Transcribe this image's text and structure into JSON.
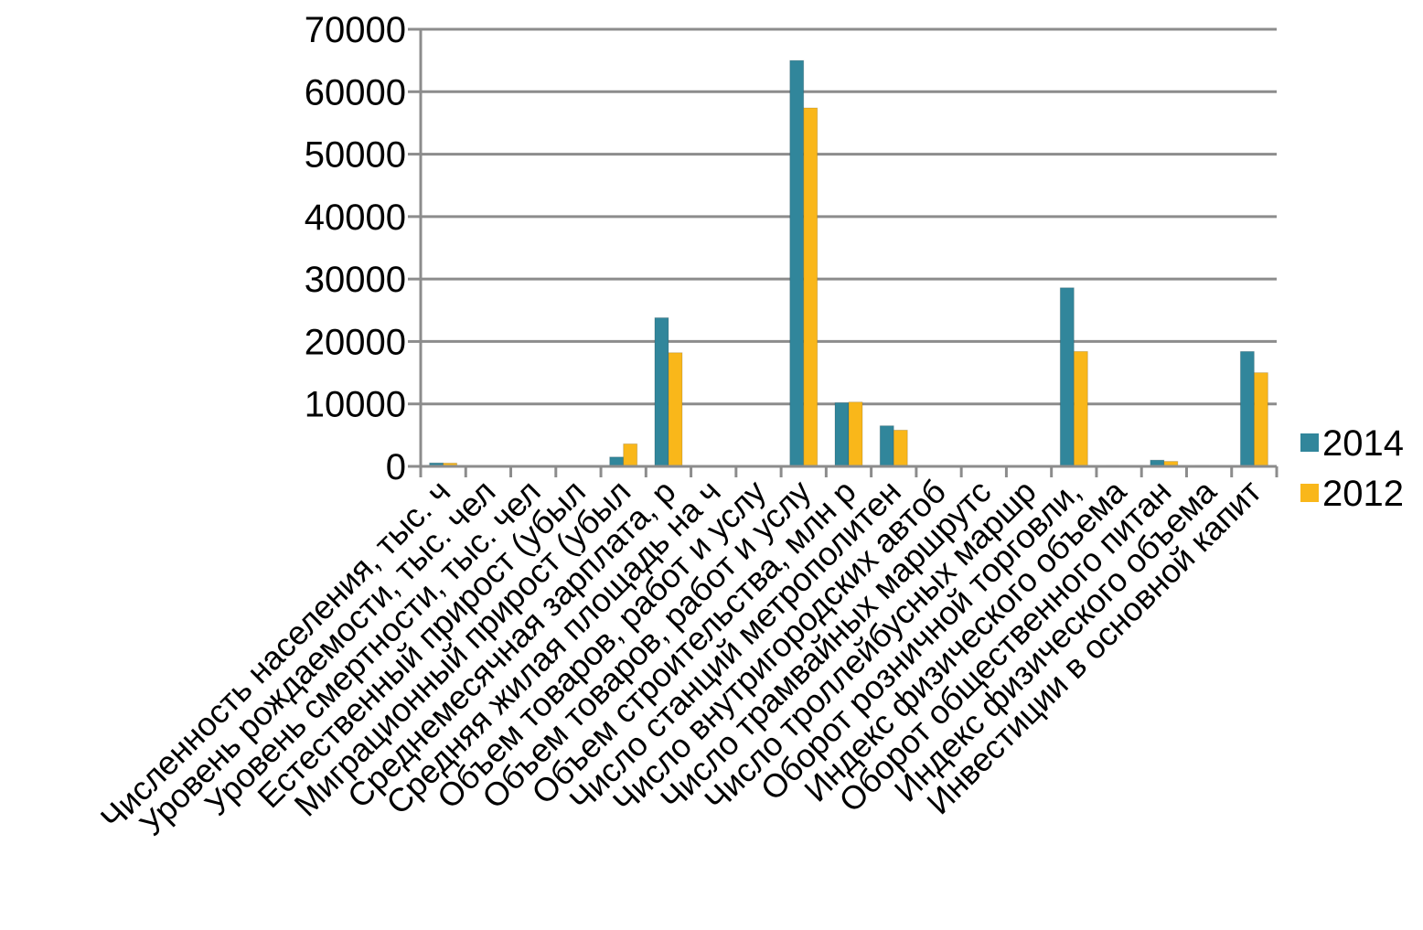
{
  "chart_data": {
    "type": "bar",
    "title": "",
    "xlabel": "",
    "ylabel": "",
    "ylim": [
      0,
      70000
    ],
    "yticks": [
      0,
      10000,
      20000,
      30000,
      40000,
      50000,
      60000,
      70000
    ],
    "grid": true,
    "legend_position": "right",
    "categories": [
      "Численность населения, тыс. ч",
      "Уровень рождаемости, тыс. чел",
      "Уровень смертности, тыс. чел",
      "Естественный прирост (убыл",
      "Миграционный прирост (убыл",
      "Среднемесячная зарплата, р",
      "Средняя жилая площадь на ч",
      "Объем товаров, работ и услу",
      "Объем товаров, работ и услу",
      "Объем строительства, млн р",
      "Число станций метрополитен",
      "Число внутригородских автоб",
      "Число трамвайных маршрутс",
      "Число троллейбусных маршр",
      "Оборот розничной торговли,",
      "Индекс физического объема",
      "Оборот общественного питан",
      "Индекс физического объема",
      "Инвестиции в основной капит"
    ],
    "series": [
      {
        "name": "2014",
        "color": "#31869b",
        "values": [
          550,
          0,
          0,
          0,
          1500,
          23800,
          0,
          0,
          65000,
          10200,
          6500,
          0,
          0,
          0,
          28600,
          150,
          1000,
          150,
          18400
        ]
      },
      {
        "name": "2012",
        "color": "#f9b71a",
        "values": [
          520,
          0,
          0,
          0,
          3600,
          18200,
          0,
          0,
          57400,
          10300,
          5800,
          0,
          0,
          0,
          18400,
          130,
          800,
          130,
          15000
        ]
      }
    ]
  }
}
